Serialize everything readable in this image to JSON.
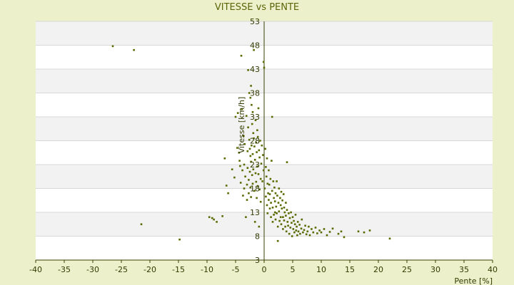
{
  "chart_data": {
    "type": "scatter",
    "title": "VITESSE vs PENTE",
    "xlabel": "Pente [%]",
    "ylabel": "Vitesse [km/h]",
    "xlim": [
      -40,
      40
    ],
    "ylim": [
      3,
      53
    ],
    "x_ticks": [
      -40,
      -35,
      -30,
      -25,
      -20,
      -15,
      -10,
      -5,
      0,
      5,
      10,
      15,
      20,
      25,
      30,
      35,
      40
    ],
    "y_ticks": [
      3,
      8,
      13,
      18,
      23,
      28,
      33,
      38,
      43,
      48,
      53
    ],
    "grid": true,
    "legend": "none",
    "colors": {
      "background": "#ecf1cc",
      "plot_area": "#ffffff",
      "band_alt": "#f2f2f2",
      "points": "#5a6a00",
      "axis": "#3a4000",
      "title": "#5c6408"
    },
    "series": [
      {
        "points": [
          [
            -26.5,
            47.8
          ],
          [
            -22.8,
            47.0
          ],
          [
            -21.5,
            10.5
          ],
          [
            -14.8,
            7.3
          ],
          [
            -9.6,
            12.0
          ],
          [
            -9.1,
            11.8
          ],
          [
            -8.8,
            11.5
          ],
          [
            -8.3,
            11.0
          ],
          [
            -7.3,
            12.2
          ],
          [
            -6.9,
            24.3
          ],
          [
            -6.6,
            18.6
          ],
          [
            -6.3,
            17.0
          ],
          [
            -5.6,
            22.0
          ],
          [
            -5.2,
            20.3
          ],
          [
            -5.0,
            33.0
          ],
          [
            -4.7,
            26.5
          ],
          [
            -4.6,
            33.8
          ],
          [
            -4.4,
            25.5
          ],
          [
            -4.3,
            23.8
          ],
          [
            -4.2,
            22.7
          ],
          [
            -4.1,
            19.2
          ],
          [
            -4.0,
            45.8
          ],
          [
            -3.9,
            34.6
          ],
          [
            -3.8,
            21.8
          ],
          [
            -3.7,
            16.5
          ],
          [
            -3.6,
            29.0
          ],
          [
            -3.5,
            23.0
          ],
          [
            -3.5,
            18.0
          ],
          [
            -3.4,
            27.3
          ],
          [
            -3.3,
            20.5
          ],
          [
            -3.2,
            12.0
          ],
          [
            -3.1,
            33.2
          ],
          [
            -3.0,
            18.8
          ],
          [
            -3.0,
            15.6
          ],
          [
            -2.9,
            25.8
          ],
          [
            -2.9,
            22.3
          ],
          [
            -2.8,
            42.8
          ],
          [
            -2.8,
            30.8
          ],
          [
            -2.7,
            19.8
          ],
          [
            -2.7,
            17.0
          ],
          [
            -2.6,
            38.0
          ],
          [
            -2.6,
            28.2
          ],
          [
            -2.5,
            26.3
          ],
          [
            -2.5,
            21.5
          ],
          [
            -2.4,
            37.0
          ],
          [
            -2.4,
            24.8
          ],
          [
            -2.4,
            18.2
          ],
          [
            -2.3,
            39.5
          ],
          [
            -2.3,
            23.6
          ],
          [
            -2.3,
            16.2
          ],
          [
            -2.2,
            35.5
          ],
          [
            -2.2,
            27.0
          ],
          [
            -2.1,
            31.5
          ],
          [
            -2.1,
            20.8
          ],
          [
            -2.0,
            34.0
          ],
          [
            -2.0,
            25.2
          ],
          [
            -2.0,
            19.0
          ],
          [
            -1.9,
            29.6
          ],
          [
            -1.9,
            22.0
          ],
          [
            -1.8,
            47.0
          ],
          [
            -1.8,
            28.5
          ],
          [
            -1.7,
            26.8
          ],
          [
            -1.7,
            17.5
          ],
          [
            -1.6,
            24.0
          ],
          [
            -1.6,
            11.0
          ],
          [
            -1.5,
            32.3
          ],
          [
            -1.5,
            21.2
          ],
          [
            -1.4,
            27.6
          ],
          [
            -1.4,
            19.4
          ],
          [
            -1.3,
            25.6
          ],
          [
            -1.3,
            16.0
          ],
          [
            -1.2,
            30.2
          ],
          [
            -1.2,
            22.6
          ],
          [
            -1.1,
            28.8
          ],
          [
            -1.1,
            18.5
          ],
          [
            -1.0,
            34.8
          ],
          [
            -1.0,
            21.0
          ],
          [
            -0.9,
            26.0
          ],
          [
            -0.9,
            10.0
          ],
          [
            -0.8,
            24.5
          ],
          [
            -0.8,
            17.8
          ],
          [
            -0.7,
            28.0
          ],
          [
            -0.6,
            20.0
          ],
          [
            -0.6,
            15.2
          ],
          [
            -0.5,
            23.2
          ],
          [
            -0.4,
            27.0
          ],
          [
            -0.3,
            19.5
          ],
          [
            -0.2,
            25.0
          ],
          [
            -0.1,
            44.5
          ],
          [
            -0.1,
            21.8
          ],
          [
            0.0,
            43.3
          ],
          [
            0.1,
            18.0
          ],
          [
            0.2,
            26.3
          ],
          [
            0.3,
            16.3
          ],
          [
            0.3,
            22.5
          ],
          [
            0.4,
            20.5
          ],
          [
            0.5,
            14.5
          ],
          [
            0.5,
            24.3
          ],
          [
            0.6,
            12.8
          ],
          [
            0.6,
            19.0
          ],
          [
            0.7,
            17.0
          ],
          [
            0.8,
            15.6
          ],
          [
            0.8,
            21.8
          ],
          [
            0.9,
            18.8
          ],
          [
            1.0,
            16.8
          ],
          [
            1.0,
            13.8
          ],
          [
            1.1,
            20.0
          ],
          [
            1.2,
            15.0
          ],
          [
            1.2,
            12.0
          ],
          [
            1.3,
            23.8
          ],
          [
            1.4,
            17.5
          ],
          [
            1.4,
            33.0
          ],
          [
            1.5,
            14.0
          ],
          [
            1.5,
            11.0
          ],
          [
            1.6,
            19.5
          ],
          [
            1.7,
            16.0
          ],
          [
            1.7,
            12.5
          ],
          [
            1.8,
            18.2
          ],
          [
            1.9,
            15.3
          ],
          [
            1.9,
            13.0
          ],
          [
            2.0,
            17.0
          ],
          [
            2.0,
            11.5
          ],
          [
            2.1,
            14.2
          ],
          [
            2.2,
            19.5
          ],
          [
            2.2,
            12.8
          ],
          [
            2.3,
            16.5
          ],
          [
            2.4,
            10.0
          ],
          [
            2.4,
            7.0
          ],
          [
            2.5,
            15.0
          ],
          [
            2.6,
            18.0
          ],
          [
            2.6,
            13.2
          ],
          [
            2.7,
            11.2
          ],
          [
            2.8,
            16.0
          ],
          [
            2.9,
            14.5
          ],
          [
            2.9,
            12.0
          ],
          [
            3.0,
            17.3
          ],
          [
            3.0,
            10.5
          ],
          [
            3.1,
            13.8
          ],
          [
            3.2,
            15.5
          ],
          [
            3.3,
            12.0
          ],
          [
            3.3,
            9.5
          ],
          [
            3.4,
            16.8
          ],
          [
            3.5,
            14.0
          ],
          [
            3.5,
            11.3
          ],
          [
            3.6,
            13.0
          ],
          [
            3.7,
            10.0
          ],
          [
            3.8,
            15.0
          ],
          [
            3.8,
            12.3
          ],
          [
            3.9,
            9.0
          ],
          [
            4.0,
            23.5
          ],
          [
            4.0,
            13.5
          ],
          [
            4.1,
            11.0
          ],
          [
            4.2,
            10.2
          ],
          [
            4.3,
            12.8
          ],
          [
            4.4,
            8.5
          ],
          [
            4.5,
            11.8
          ],
          [
            4.6,
            9.8
          ],
          [
            4.7,
            13.0
          ],
          [
            4.8,
            10.8
          ],
          [
            4.9,
            8.0
          ],
          [
            5.0,
            12.0
          ],
          [
            5.1,
            9.5
          ],
          [
            5.2,
            11.2
          ],
          [
            5.3,
            8.8
          ],
          [
            5.4,
            10.5
          ],
          [
            5.5,
            12.5
          ],
          [
            5.6,
            9.2
          ],
          [
            5.7,
            10.0
          ],
          [
            5.8,
            8.2
          ],
          [
            5.9,
            11.0
          ],
          [
            6.0,
            9.0
          ],
          [
            6.2,
            10.4
          ],
          [
            6.3,
            8.5
          ],
          [
            6.5,
            9.6
          ],
          [
            6.6,
            11.5
          ],
          [
            6.8,
            8.8
          ],
          [
            7.0,
            9.3
          ],
          [
            7.2,
            10.2
          ],
          [
            7.4,
            8.4
          ],
          [
            7.6,
            9.0
          ],
          [
            7.8,
            10.0
          ],
          [
            8.0,
            8.2
          ],
          [
            8.3,
            9.5
          ],
          [
            8.6,
            8.8
          ],
          [
            9.0,
            9.8
          ],
          [
            9.3,
            8.6
          ],
          [
            9.7,
            9.2
          ],
          [
            10.0,
            8.8
          ],
          [
            10.5,
            9.5
          ],
          [
            11.0,
            8.2
          ],
          [
            11.5,
            8.9
          ],
          [
            12.0,
            9.6
          ],
          [
            13.0,
            8.5
          ],
          [
            13.5,
            9.0
          ],
          [
            14.0,
            7.8
          ],
          [
            16.5,
            9.0
          ],
          [
            17.5,
            8.8
          ],
          [
            18.5,
            9.2
          ],
          [
            22.0,
            7.5
          ]
        ]
      }
    ]
  }
}
